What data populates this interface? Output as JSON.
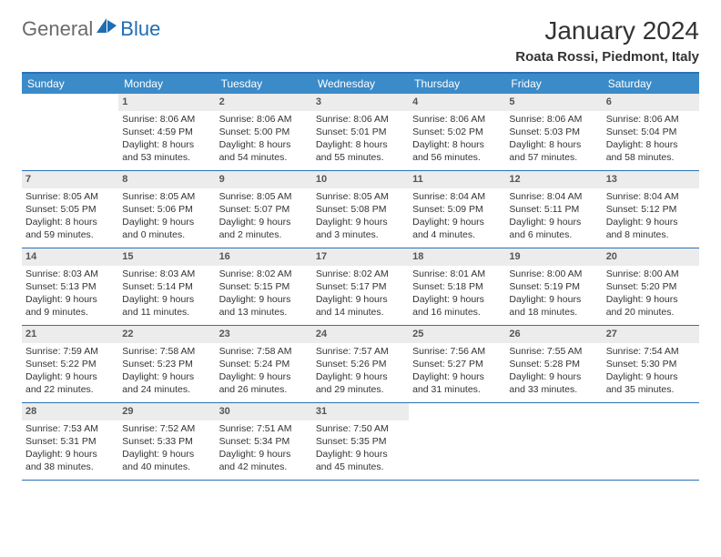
{
  "brand": {
    "part1": "General",
    "part2": "Blue"
  },
  "header": {
    "month_year": "January 2024",
    "location": "Roata Rossi, Piedmont, Italy"
  },
  "colors": {
    "header_bg": "#3b8bc9",
    "border": "#2b71b8",
    "daynum_bg": "#ececec",
    "logo_gray": "#6b6b6b",
    "logo_blue": "#1f6db3"
  },
  "day_names": [
    "Sunday",
    "Monday",
    "Tuesday",
    "Wednesday",
    "Thursday",
    "Friday",
    "Saturday"
  ],
  "weeks": [
    [
      null,
      {
        "n": "1",
        "sr": "8:06 AM",
        "ss": "4:59 PM",
        "dl": "8 hours and 53 minutes."
      },
      {
        "n": "2",
        "sr": "8:06 AM",
        "ss": "5:00 PM",
        "dl": "8 hours and 54 minutes."
      },
      {
        "n": "3",
        "sr": "8:06 AM",
        "ss": "5:01 PM",
        "dl": "8 hours and 55 minutes."
      },
      {
        "n": "4",
        "sr": "8:06 AM",
        "ss": "5:02 PM",
        "dl": "8 hours and 56 minutes."
      },
      {
        "n": "5",
        "sr": "8:06 AM",
        "ss": "5:03 PM",
        "dl": "8 hours and 57 minutes."
      },
      {
        "n": "6",
        "sr": "8:06 AM",
        "ss": "5:04 PM",
        "dl": "8 hours and 58 minutes."
      }
    ],
    [
      {
        "n": "7",
        "sr": "8:05 AM",
        "ss": "5:05 PM",
        "dl": "8 hours and 59 minutes."
      },
      {
        "n": "8",
        "sr": "8:05 AM",
        "ss": "5:06 PM",
        "dl": "9 hours and 0 minutes."
      },
      {
        "n": "9",
        "sr": "8:05 AM",
        "ss": "5:07 PM",
        "dl": "9 hours and 2 minutes."
      },
      {
        "n": "10",
        "sr": "8:05 AM",
        "ss": "5:08 PM",
        "dl": "9 hours and 3 minutes."
      },
      {
        "n": "11",
        "sr": "8:04 AM",
        "ss": "5:09 PM",
        "dl": "9 hours and 4 minutes."
      },
      {
        "n": "12",
        "sr": "8:04 AM",
        "ss": "5:11 PM",
        "dl": "9 hours and 6 minutes."
      },
      {
        "n": "13",
        "sr": "8:04 AM",
        "ss": "5:12 PM",
        "dl": "9 hours and 8 minutes."
      }
    ],
    [
      {
        "n": "14",
        "sr": "8:03 AM",
        "ss": "5:13 PM",
        "dl": "9 hours and 9 minutes."
      },
      {
        "n": "15",
        "sr": "8:03 AM",
        "ss": "5:14 PM",
        "dl": "9 hours and 11 minutes."
      },
      {
        "n": "16",
        "sr": "8:02 AM",
        "ss": "5:15 PM",
        "dl": "9 hours and 13 minutes."
      },
      {
        "n": "17",
        "sr": "8:02 AM",
        "ss": "5:17 PM",
        "dl": "9 hours and 14 minutes."
      },
      {
        "n": "18",
        "sr": "8:01 AM",
        "ss": "5:18 PM",
        "dl": "9 hours and 16 minutes."
      },
      {
        "n": "19",
        "sr": "8:00 AM",
        "ss": "5:19 PM",
        "dl": "9 hours and 18 minutes."
      },
      {
        "n": "20",
        "sr": "8:00 AM",
        "ss": "5:20 PM",
        "dl": "9 hours and 20 minutes."
      }
    ],
    [
      {
        "n": "21",
        "sr": "7:59 AM",
        "ss": "5:22 PM",
        "dl": "9 hours and 22 minutes."
      },
      {
        "n": "22",
        "sr": "7:58 AM",
        "ss": "5:23 PM",
        "dl": "9 hours and 24 minutes."
      },
      {
        "n": "23",
        "sr": "7:58 AM",
        "ss": "5:24 PM",
        "dl": "9 hours and 26 minutes."
      },
      {
        "n": "24",
        "sr": "7:57 AM",
        "ss": "5:26 PM",
        "dl": "9 hours and 29 minutes."
      },
      {
        "n": "25",
        "sr": "7:56 AM",
        "ss": "5:27 PM",
        "dl": "9 hours and 31 minutes."
      },
      {
        "n": "26",
        "sr": "7:55 AM",
        "ss": "5:28 PM",
        "dl": "9 hours and 33 minutes."
      },
      {
        "n": "27",
        "sr": "7:54 AM",
        "ss": "5:30 PM",
        "dl": "9 hours and 35 minutes."
      }
    ],
    [
      {
        "n": "28",
        "sr": "7:53 AM",
        "ss": "5:31 PM",
        "dl": "9 hours and 38 minutes."
      },
      {
        "n": "29",
        "sr": "7:52 AM",
        "ss": "5:33 PM",
        "dl": "9 hours and 40 minutes."
      },
      {
        "n": "30",
        "sr": "7:51 AM",
        "ss": "5:34 PM",
        "dl": "9 hours and 42 minutes."
      },
      {
        "n": "31",
        "sr": "7:50 AM",
        "ss": "5:35 PM",
        "dl": "9 hours and 45 minutes."
      },
      null,
      null,
      null
    ]
  ],
  "labels": {
    "sunrise": "Sunrise:",
    "sunset": "Sunset:",
    "daylight": "Daylight:"
  }
}
